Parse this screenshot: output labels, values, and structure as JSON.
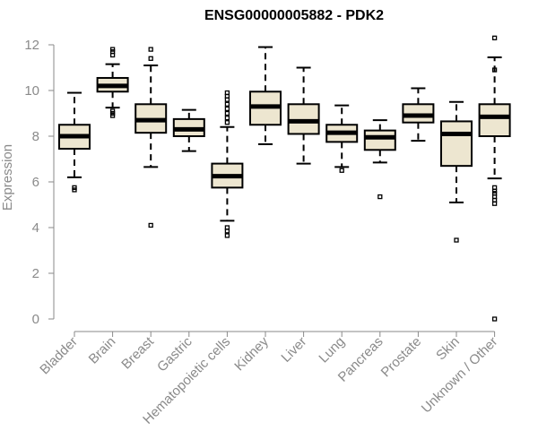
{
  "chart_data": {
    "type": "boxplot",
    "title": "ENSG00000005882 - PDK2",
    "xlabel": "",
    "ylabel": "Expression",
    "ylim": [
      0,
      12.4
    ],
    "yticks": [
      0,
      2,
      4,
      6,
      8,
      10,
      12
    ],
    "grid": false,
    "colors": {
      "box_fill": "#ede6d0",
      "box_stroke": "#000000",
      "median": "#000000",
      "axis": "#8a8a8a"
    },
    "categories": [
      "Bladder",
      "Brain",
      "Breast",
      "Gastric",
      "Hematopoietic cells",
      "Kidney",
      "Liver",
      "Lung",
      "Pancreas",
      "Prostate",
      "Skin",
      "Unknown / Other"
    ],
    "boxes": [
      {
        "label": "Bladder",
        "whisker_low": 6.2,
        "q1": 7.45,
        "median": 8.0,
        "q3": 8.5,
        "whisker_high": 9.9,
        "outliers": [
          5.65,
          5.75
        ]
      },
      {
        "label": "Brain",
        "whisker_low": 9.25,
        "q1": 9.95,
        "median": 10.2,
        "q3": 10.55,
        "whisker_high": 11.15,
        "outliers": [
          8.9,
          9.0,
          9.1,
          11.55,
          11.7,
          11.8
        ]
      },
      {
        "label": "Breast",
        "whisker_low": 6.65,
        "q1": 8.15,
        "median": 8.7,
        "q3": 9.4,
        "whisker_high": 11.1,
        "outliers": [
          4.1,
          11.4,
          11.8
        ]
      },
      {
        "label": "Gastric",
        "whisker_low": 7.35,
        "q1": 8.0,
        "median": 8.3,
        "q3": 8.75,
        "whisker_high": 9.15,
        "outliers": []
      },
      {
        "label": "Hematopoietic cells",
        "whisker_low": 4.3,
        "q1": 5.75,
        "median": 6.25,
        "q3": 6.8,
        "whisker_high": 8.4,
        "outliers": [
          3.65,
          3.85,
          4.0,
          8.6,
          8.8,
          9.0,
          9.2,
          9.4,
          9.6,
          9.75,
          9.9
        ]
      },
      {
        "label": "Kidney",
        "whisker_low": 7.65,
        "q1": 8.5,
        "median": 9.3,
        "q3": 9.95,
        "whisker_high": 11.9,
        "outliers": []
      },
      {
        "label": "Liver",
        "whisker_low": 6.8,
        "q1": 8.1,
        "median": 8.65,
        "q3": 9.4,
        "whisker_high": 11.0,
        "outliers": []
      },
      {
        "label": "Lung",
        "whisker_low": 6.65,
        "q1": 7.75,
        "median": 8.15,
        "q3": 8.5,
        "whisker_high": 9.35,
        "outliers": [
          6.5
        ]
      },
      {
        "label": "Pancreas",
        "whisker_low": 6.85,
        "q1": 7.4,
        "median": 7.95,
        "q3": 8.25,
        "whisker_high": 8.7,
        "outliers": [
          5.35
        ]
      },
      {
        "label": "Prostate",
        "whisker_low": 7.8,
        "q1": 8.6,
        "median": 8.9,
        "q3": 9.4,
        "whisker_high": 10.1,
        "outliers": []
      },
      {
        "label": "Skin",
        "whisker_low": 5.1,
        "q1": 6.7,
        "median": 8.1,
        "q3": 8.65,
        "whisker_high": 9.5,
        "outliers": [
          3.45
        ]
      },
      {
        "label": "Unknown / Other",
        "whisker_low": 6.15,
        "q1": 8.0,
        "median": 8.85,
        "q3": 9.4,
        "whisker_high": 11.45,
        "outliers": [
          0.0,
          5.05,
          5.2,
          5.35,
          5.5,
          5.6,
          5.75,
          10.9,
          12.3
        ]
      }
    ]
  }
}
